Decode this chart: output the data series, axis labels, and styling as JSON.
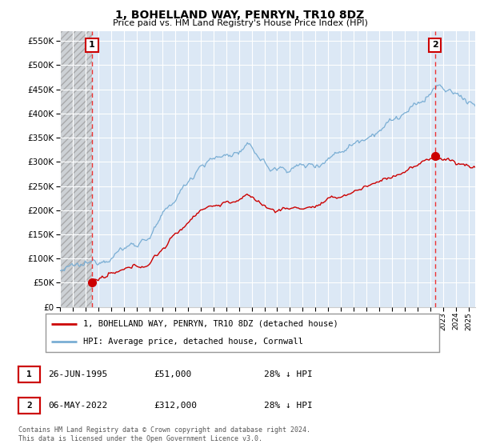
{
  "title": "1, BOHELLAND WAY, PENRYN, TR10 8DZ",
  "subtitle": "Price paid vs. HM Land Registry's House Price Index (HPI)",
  "ylim": [
    0,
    570000
  ],
  "yticks": [
    0,
    50000,
    100000,
    150000,
    200000,
    250000,
    300000,
    350000,
    400000,
    450000,
    500000,
    550000
  ],
  "hpi_color": "#7aaed4",
  "price_color": "#cc0000",
  "dashed_color": "#ee3333",
  "point1_year": 1995.5,
  "point1_price": 51000,
  "point2_year": 2022.35,
  "point2_price": 312000,
  "legend_label1": "1, BOHELLAND WAY, PENRYN, TR10 8DZ (detached house)",
  "legend_label2": "HPI: Average price, detached house, Cornwall",
  "table_row1": [
    "1",
    "26-JUN-1995",
    "£51,000",
    "28% ↓ HPI"
  ],
  "table_row2": [
    "2",
    "06-MAY-2022",
    "£312,000",
    "28% ↓ HPI"
  ],
  "footnote": "Contains HM Land Registry data © Crown copyright and database right 2024.\nThis data is licensed under the Open Government Licence v3.0.",
  "plot_bg": "#dce8f5",
  "grid_color": "#ffffff",
  "hatch_color": "#c8c8c8",
  "xstart": 1993,
  "xend": 2025.5,
  "title_fontsize": 10,
  "subtitle_fontsize": 8
}
